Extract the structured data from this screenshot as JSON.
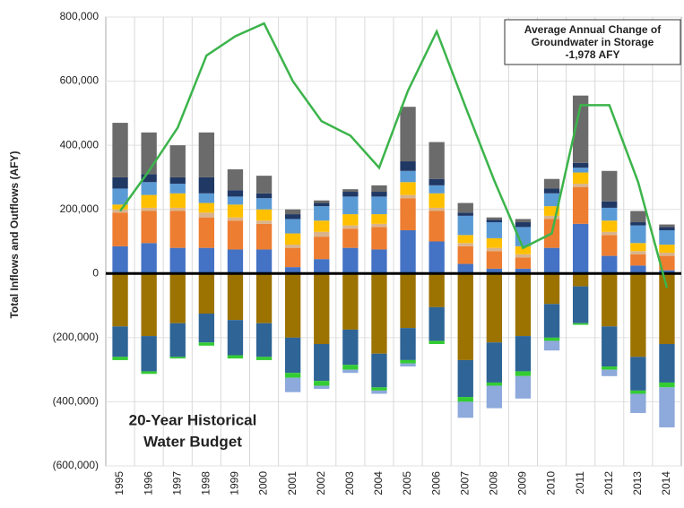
{
  "chart_data": {
    "type": "bar",
    "y_label": "Total Inflows and Outflows (AFY)",
    "annotation": [
      "Average Annual Change of",
      "Groundwater in Storage",
      "-1,978 AFY"
    ],
    "inner_title": [
      "20-Year Historical",
      "Water Budget"
    ],
    "categories": [
      "1995",
      "1996",
      "1997",
      "1998",
      "1999",
      "2000",
      "2001",
      "2002",
      "2003",
      "2004",
      "2005",
      "2006",
      "2007",
      "2008",
      "2009",
      "2010",
      "2011",
      "2012",
      "2013",
      "2014"
    ],
    "ylim": [
      -600000,
      800000
    ],
    "yticks": [
      {
        "value": -600000,
        "label": "(600,000)"
      },
      {
        "value": -400000,
        "label": "(400,000)"
      },
      {
        "value": -200000,
        "label": "(200,000)"
      },
      0,
      {
        "value": 200000,
        "label": "200,000"
      },
      {
        "value": 400000,
        "label": "400,000"
      },
      {
        "value": 600000,
        "label": "600,000"
      },
      {
        "value": 800000,
        "label": "800,000"
      }
    ],
    "series": [
      {
        "color": "#4472c4",
        "values": [
          85000,
          95000,
          80000,
          80000,
          75000,
          75000,
          20000,
          45000,
          80000,
          75000,
          135000,
          100000,
          30000,
          15000,
          15000,
          80000,
          155000,
          55000,
          25000,
          10000
        ]
      },
      {
        "color": "#ed7d31",
        "values": [
          105000,
          100000,
          115000,
          95000,
          90000,
          80000,
          60000,
          70000,
          60000,
          70000,
          100000,
          95000,
          55000,
          55000,
          35000,
          90000,
          115000,
          65000,
          35000,
          45000
        ]
      },
      {
        "color": "#d9b38c",
        "values": [
          10000,
          10000,
          10000,
          15000,
          10000,
          10000,
          10000,
          15000,
          10000,
          10000,
          10000,
          10000,
          10000,
          10000,
          10000,
          10000,
          10000,
          10000,
          10000,
          10000
        ]
      },
      {
        "color": "#ffc000",
        "values": [
          15000,
          40000,
          45000,
          30000,
          40000,
          35000,
          35000,
          35000,
          35000,
          30000,
          40000,
          45000,
          25000,
          30000,
          25000,
          30000,
          35000,
          35000,
          25000,
          25000
        ]
      },
      {
        "color": "#5b9bd5",
        "values": [
          50000,
          40000,
          30000,
          30000,
          25000,
          35000,
          45000,
          45000,
          55000,
          55000,
          35000,
          25000,
          60000,
          50000,
          60000,
          40000,
          15000,
          40000,
          55000,
          45000
        ]
      },
      {
        "color": "#203864",
        "values": [
          35000,
          25000,
          20000,
          50000,
          20000,
          15000,
          15000,
          10000,
          15000,
          15000,
          30000,
          20000,
          10000,
          8000,
          15000,
          15000,
          15000,
          20000,
          10000,
          10000
        ]
      },
      {
        "color": "#6b6b6b",
        "values": [
          170000,
          130000,
          100000,
          140000,
          65000,
          55000,
          15000,
          8000,
          8000,
          20000,
          170000,
          115000,
          30000,
          7000,
          10000,
          30000,
          210000,
          95000,
          35000,
          8000
        ]
      },
      {
        "color": "#9c7200",
        "values": [
          -165000,
          -195000,
          -155000,
          -125000,
          -145000,
          -155000,
          -200000,
          -220000,
          -175000,
          -250000,
          -170000,
          -105000,
          -270000,
          -215000,
          -195000,
          -95000,
          -40000,
          -165000,
          -260000,
          -220000
        ]
      },
      {
        "color": "#2e6496",
        "values": [
          -95000,
          -110000,
          -105000,
          -90000,
          -110000,
          -105000,
          -110000,
          -115000,
          -110000,
          -105000,
          -100000,
          -105000,
          -115000,
          -125000,
          -110000,
          -105000,
          -115000,
          -125000,
          -105000,
          -120000
        ]
      },
      {
        "color": "#33cc33",
        "values": [
          -10000,
          -8000,
          -5000,
          -10000,
          -10000,
          -10000,
          -15000,
          -15000,
          -15000,
          -10000,
          -10000,
          -10000,
          -15000,
          -10000,
          -15000,
          -10000,
          -5000,
          -10000,
          -10000,
          -15000
        ]
      },
      {
        "color": "#8ea9db",
        "values": [
          0,
          0,
          0,
          0,
          0,
          0,
          -45000,
          -10000,
          -10000,
          -10000,
          -10000,
          0,
          -50000,
          -70000,
          -70000,
          -30000,
          0,
          -20000,
          -60000,
          -125000
        ]
      },
      {
        "type": "line",
        "color": "#3cb44b",
        "values": [
          195000,
          320000,
          455000,
          680000,
          740000,
          780000,
          600000,
          475000,
          430000,
          330000,
          570000,
          755000,
          520000,
          290000,
          80000,
          125000,
          525000,
          525000,
          285000,
          -45000
        ]
      }
    ]
  }
}
